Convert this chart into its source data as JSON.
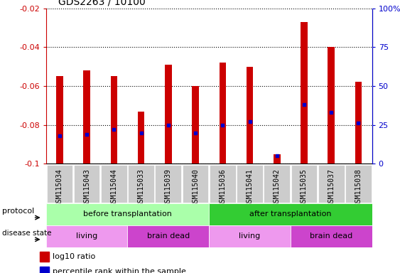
{
  "title": "GDS2263 / 10100",
  "samples": [
    "GSM115034",
    "GSM115043",
    "GSM115044",
    "GSM115033",
    "GSM115039",
    "GSM115040",
    "GSM115036",
    "GSM115041",
    "GSM115042",
    "GSM115035",
    "GSM115037",
    "GSM115038"
  ],
  "log10_ratio": [
    -0.055,
    -0.052,
    -0.055,
    -0.073,
    -0.049,
    -0.06,
    -0.048,
    -0.05,
    -0.095,
    -0.027,
    -0.04,
    -0.058
  ],
  "percentile_rank": [
    18,
    19,
    22,
    20,
    25,
    20,
    25,
    27,
    5,
    38,
    33,
    26
  ],
  "ylim_left": [
    -0.1,
    -0.02
  ],
  "yticks_left": [
    -0.1,
    -0.08,
    -0.06,
    -0.04,
    -0.02
  ],
  "ylim_right": [
    0,
    100
  ],
  "yticks_right": [
    0,
    25,
    50,
    75,
    100
  ],
  "yticklabels_right": [
    "0",
    "25",
    "50",
    "75",
    "100%"
  ],
  "bar_color": "#cc0000",
  "dot_color": "#0000cc",
  "protocol_groups": [
    {
      "label": "before transplantation",
      "start": 0,
      "end": 6,
      "color": "#aaffaa"
    },
    {
      "label": "after transplantation",
      "start": 6,
      "end": 12,
      "color": "#33cc33"
    }
  ],
  "disease_groups": [
    {
      "label": "living",
      "start": 0,
      "end": 3,
      "color": "#ee99ee"
    },
    {
      "label": "brain dead",
      "start": 3,
      "end": 6,
      "color": "#cc44cc"
    },
    {
      "label": "living",
      "start": 6,
      "end": 9,
      "color": "#ee99ee"
    },
    {
      "label": "brain dead",
      "start": 9,
      "end": 12,
      "color": "#cc44cc"
    }
  ],
  "legend_bar_label": "log10 ratio",
  "legend_dot_label": "percentile rank within the sample",
  "bar_width": 0.25,
  "left_tick_color": "#cc0000",
  "right_tick_color": "#0000cc",
  "background_color": "#ffffff",
  "plot_bg_color": "#ffffff",
  "xtick_bg_color": "#cccccc",
  "xlabel_fontsize": 7,
  "ylabel_fontsize": 8,
  "title_fontsize": 10,
  "annotation_fontsize": 8
}
